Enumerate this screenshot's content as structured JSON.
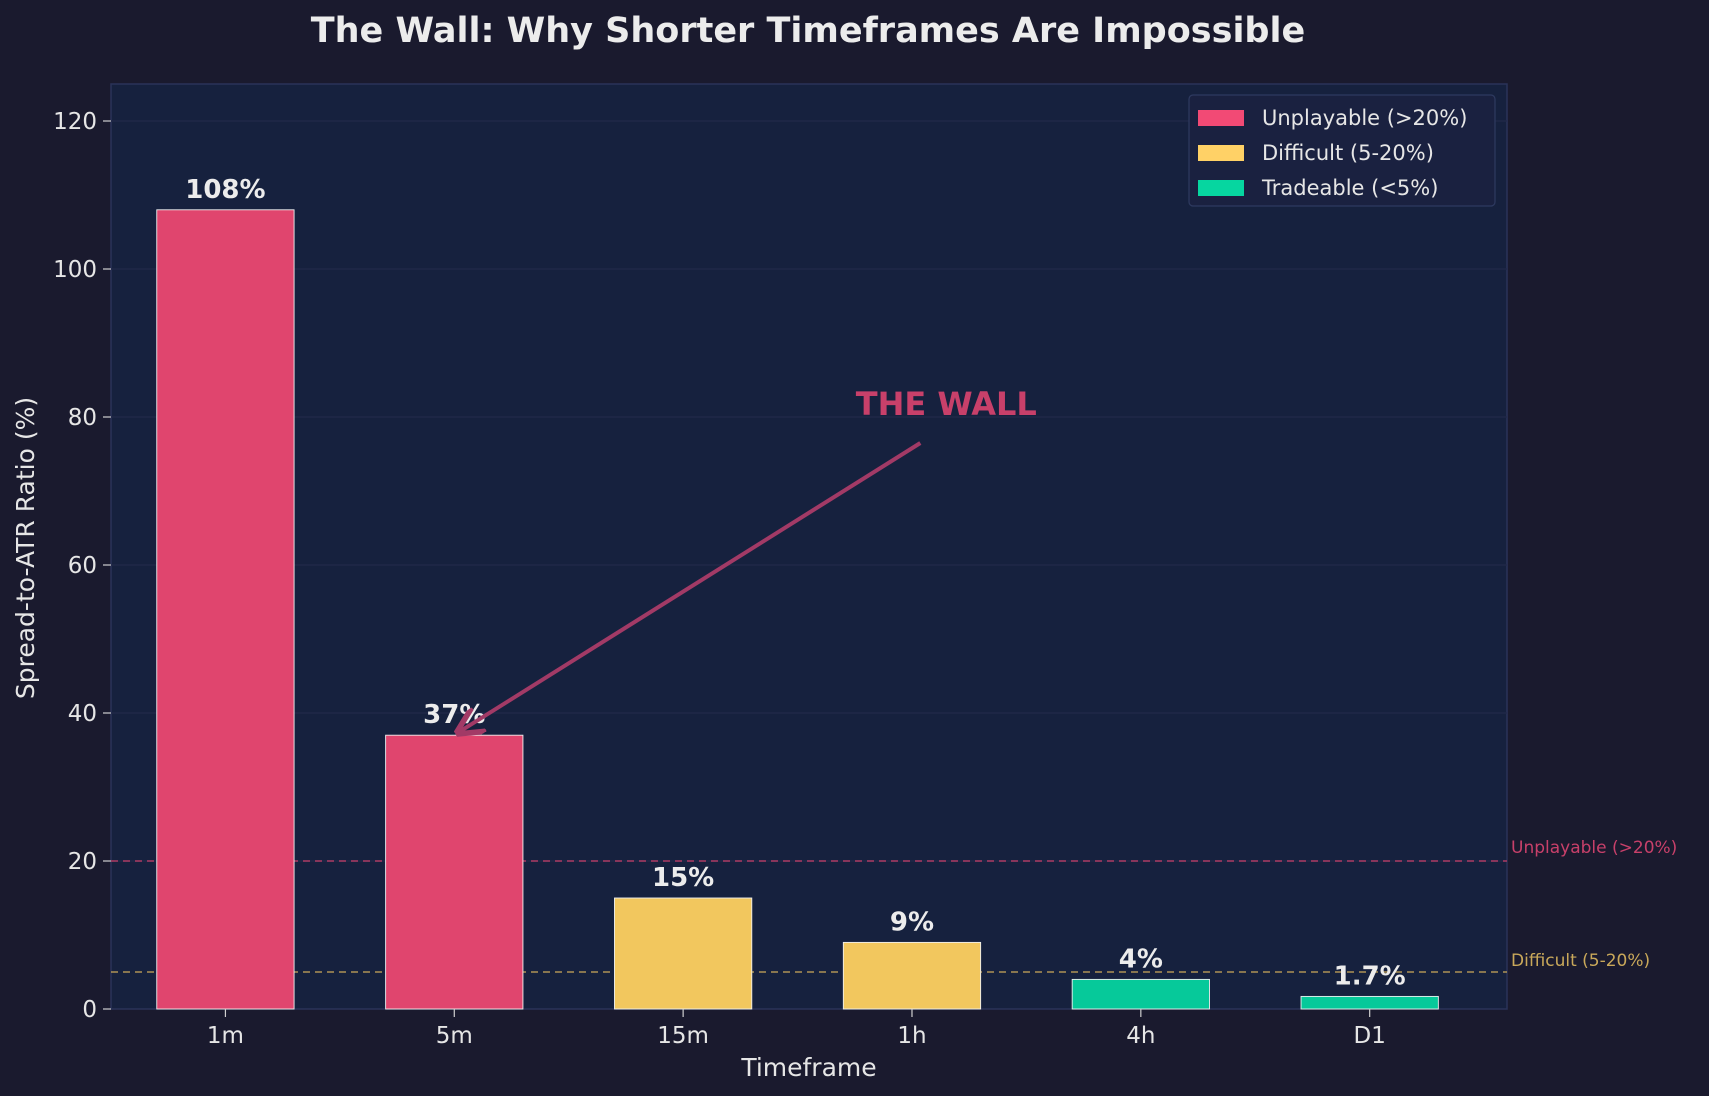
{
  "chart_data": {
    "type": "bar",
    "title": "The Wall: Why Shorter Timeframes Are Impossible",
    "xlabel": "Timeframe",
    "ylabel": "Spread-to-ATR Ratio (%)",
    "ylim": [
      0,
      125
    ],
    "yticks": [
      0,
      20,
      40,
      60,
      80,
      100,
      120
    ],
    "categories": [
      "1m",
      "5m",
      "15m",
      "1h",
      "4h",
      "D1"
    ],
    "values": [
      108,
      37,
      15,
      9,
      4,
      1.7
    ],
    "value_labels": [
      "108%",
      "37%",
      "15%",
      "9%",
      "4%",
      "1.7%"
    ],
    "bar_classes": [
      "unplayable",
      "unplayable",
      "difficult",
      "difficult",
      "tradeable",
      "tradeable"
    ],
    "colors": {
      "unplayable": "#e0456e",
      "difficult": "#f2c75e",
      "tradeable": "#06c99a",
      "legend_unplayable": "#f24a75",
      "legend_difficult": "#ffd166",
      "legend_tradeable": "#06d6a0",
      "plot_bg": "#16213e",
      "page_bg": "#1a1a2e"
    },
    "legend": {
      "position": "top-right",
      "entries": [
        {
          "label": "Unplayable (>20%)",
          "class": "legend_unplayable"
        },
        {
          "label": "Difficult (5-20%)",
          "class": "legend_difficult"
        },
        {
          "label": "Tradeable (<5%)",
          "class": "legend_tradeable"
        }
      ]
    },
    "thresholds": [
      {
        "value": 20,
        "label": "Unplayable (>20%)",
        "color": "#c8406a"
      },
      {
        "value": 5,
        "label": "Difficult (5-20%)",
        "color": "#c9a85a"
      }
    ],
    "annotation": {
      "text": "THE WALL",
      "text_at": {
        "x": 3.15,
        "y": 80
      },
      "arrow_to": {
        "x": 1.0,
        "y": 37
      }
    },
    "grid": true
  }
}
